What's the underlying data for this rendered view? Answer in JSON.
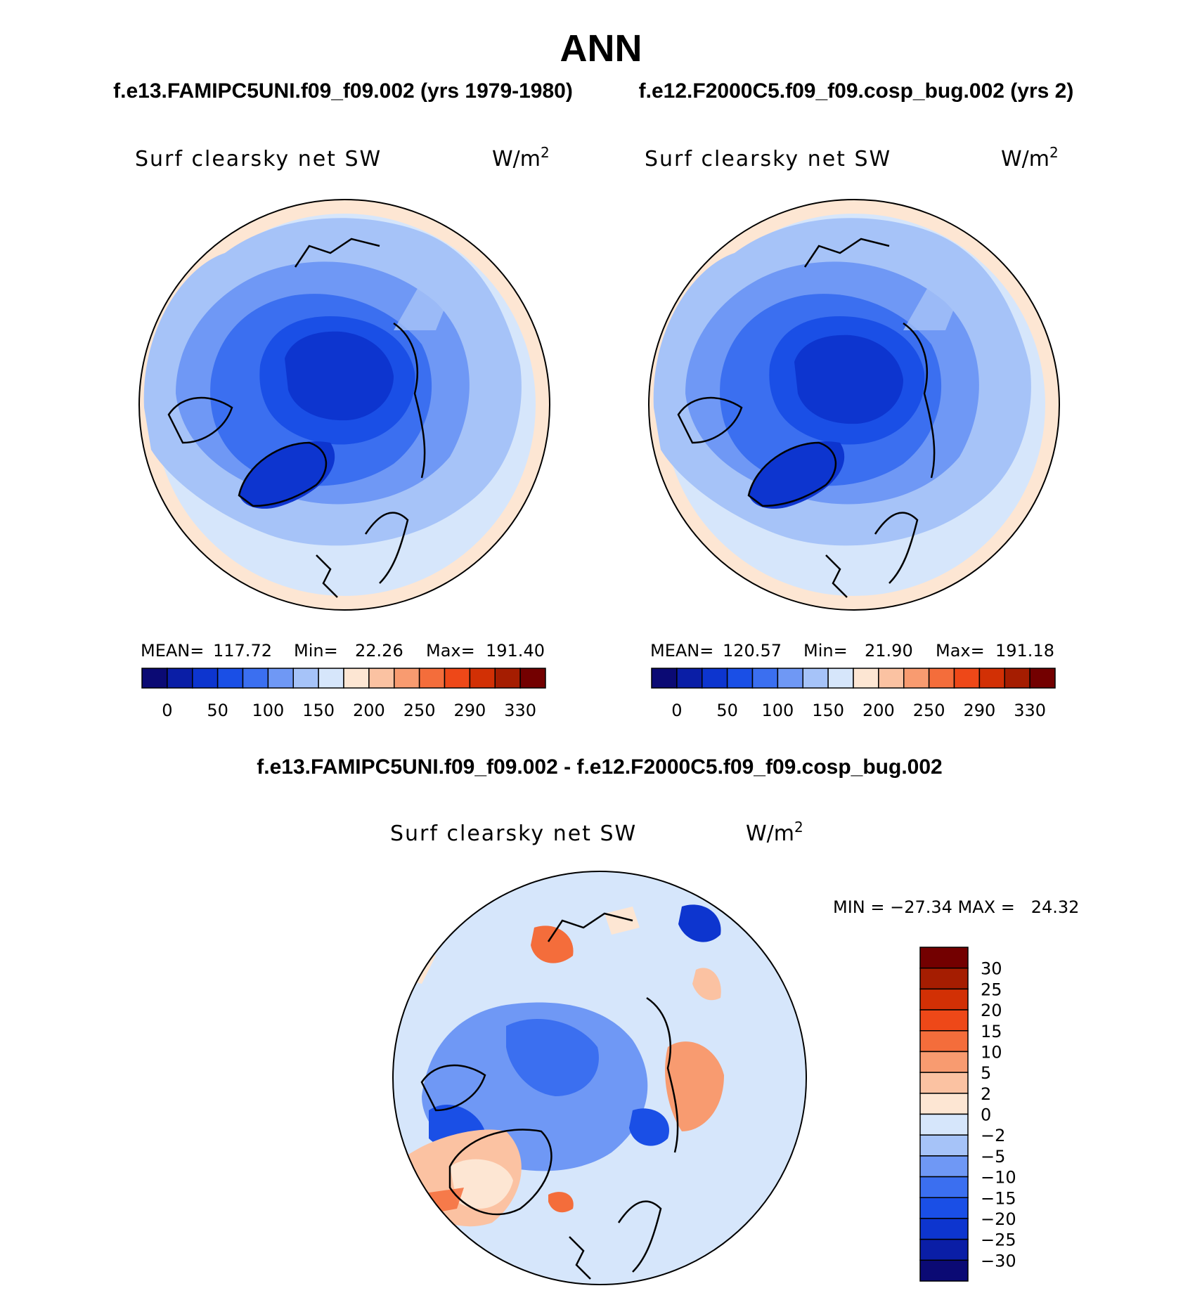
{
  "page": {
    "title": "ANN",
    "subtitle_left": "f.e13.FAMIPC5UNI.f09_f09.002 (yrs 1979-1980)",
    "subtitle_right": "f.e12.F2000C5.f09_f09.cosp_bug.002 (yrs 2)",
    "diff_title": "f.e13.FAMIPC5UNI.f09_f09.002 - f.e12.F2000C5.f09_f09.cosp_bug.002"
  },
  "chart_data": [
    {
      "type": "heatmap",
      "projection": "north-polar-stereographic",
      "variable": "Surf clearsky net SW",
      "units": "W/m",
      "units_sup": "2",
      "stats": {
        "mean_label": "MEAN=",
        "mean": "117.72",
        "min_label": "Min=",
        "min": "22.26",
        "max_label": "Max=",
        "max": "191.40"
      },
      "colorbar": {
        "orientation": "horizontal",
        "colors": [
          "#0b0a74",
          "#0a1ea6",
          "#0d35cf",
          "#1a4fe6",
          "#3b6ff0",
          "#6f98f5",
          "#a6c3f8",
          "#d6e6fb",
          "#fde6d3",
          "#fbc2a2",
          "#f89b70",
          "#f46d3b",
          "#ee4818",
          "#d23005",
          "#a51d01",
          "#730000"
        ],
        "tick_labels": [
          "0",
          "50",
          "100",
          "150",
          "200",
          "250",
          "290",
          "330"
        ]
      }
    },
    {
      "type": "heatmap",
      "projection": "north-polar-stereographic",
      "variable": "Surf clearsky net SW",
      "units": "W/m",
      "units_sup": "2",
      "stats": {
        "mean_label": "MEAN=",
        "mean": "120.57",
        "min_label": "Min=",
        "min": "21.90",
        "max_label": "Max=",
        "max": "191.18"
      },
      "colorbar": {
        "orientation": "horizontal",
        "colors": [
          "#0b0a74",
          "#0a1ea6",
          "#0d35cf",
          "#1a4fe6",
          "#3b6ff0",
          "#6f98f5",
          "#a6c3f8",
          "#d6e6fb",
          "#fde6d3",
          "#fbc2a2",
          "#f89b70",
          "#f46d3b",
          "#ee4818",
          "#d23005",
          "#a51d01",
          "#730000"
        ],
        "tick_labels": [
          "0",
          "50",
          "100",
          "150",
          "200",
          "250",
          "290",
          "330"
        ]
      }
    },
    {
      "type": "heatmap",
      "projection": "north-polar-stereographic",
      "variable": "Surf clearsky net SW",
      "units": "W/m",
      "units_sup": "2",
      "stats": {
        "text": "MIN = −27.34 MAX =   24.32"
      },
      "colorbar": {
        "orientation": "vertical",
        "colors": [
          "#0b0a74",
          "#0a1ea6",
          "#0d35cf",
          "#1a4fe6",
          "#3b6ff0",
          "#6f98f5",
          "#a6c3f8",
          "#d6e6fb",
          "#fde6d3",
          "#fbc2a2",
          "#f89b70",
          "#f46d3b",
          "#ee4818",
          "#d23005",
          "#a51d01",
          "#730000"
        ],
        "tick_labels": [
          "30",
          "25",
          "20",
          "15",
          "10",
          "5",
          "2",
          "0",
          "−2",
          "−5",
          "−10",
          "−15",
          "−20",
          "−25",
          "−30"
        ]
      }
    }
  ]
}
